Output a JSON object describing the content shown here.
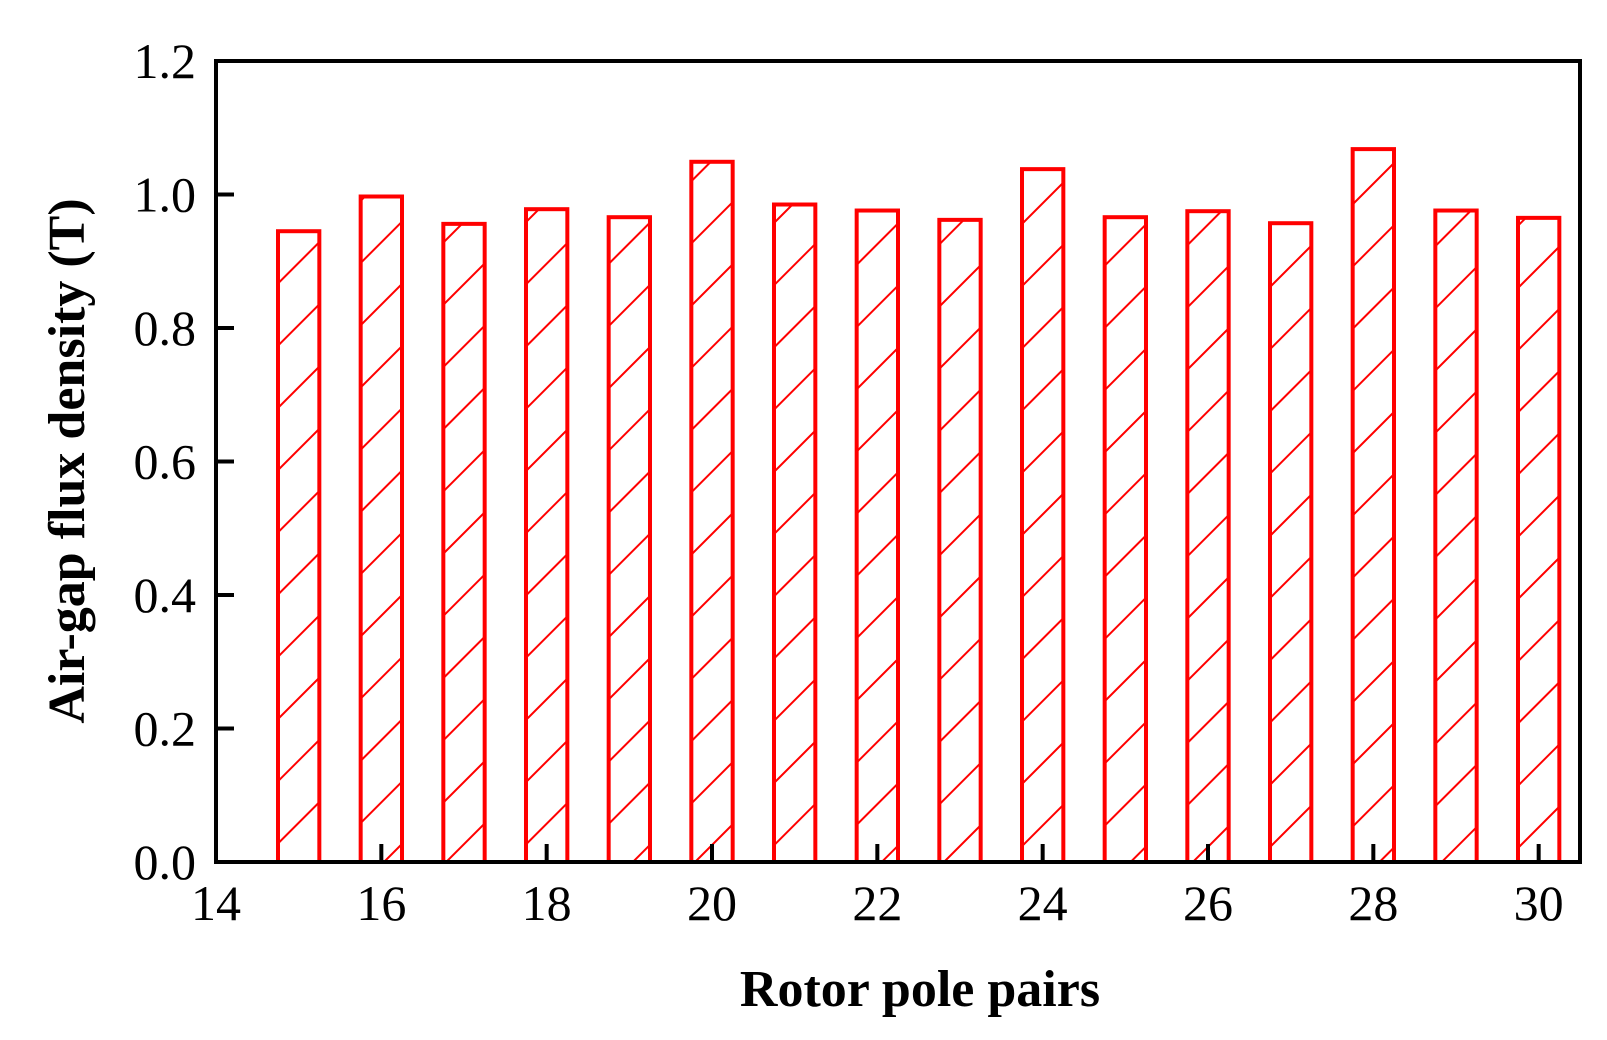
{
  "chart_data": {
    "type": "bar",
    "title": "",
    "xlabel": "Rotor pole pairs",
    "ylabel": "Air-gap flux density (T)",
    "x": [
      15,
      16,
      17,
      18,
      19,
      20,
      21,
      22,
      23,
      24,
      25,
      26,
      27,
      28,
      29,
      30
    ],
    "values": [
      0.945,
      0.997,
      0.956,
      0.978,
      0.966,
      1.049,
      0.985,
      0.976,
      0.962,
      1.038,
      0.966,
      0.975,
      0.957,
      1.068,
      0.976,
      0.965
    ],
    "xlim": [
      14,
      30.5
    ],
    "ylim": [
      0,
      1.2
    ],
    "x_ticks": [
      "14",
      "16",
      "18",
      "20",
      "22",
      "24",
      "26",
      "28",
      "30"
    ],
    "x_tick_values": [
      14,
      16,
      18,
      20,
      22,
      24,
      26,
      28,
      30
    ],
    "y_ticks": [
      "0.0",
      "0.2",
      "0.4",
      "0.6",
      "0.8",
      "1.0",
      "1.2"
    ],
    "y_tick_values": [
      0,
      0.2,
      0.4,
      0.6,
      0.8,
      1.0,
      1.2
    ],
    "bar_width": 0.5,
    "bar_color": "#ff0000",
    "bar_fill": "hatched",
    "grid": false,
    "legend": "none"
  }
}
